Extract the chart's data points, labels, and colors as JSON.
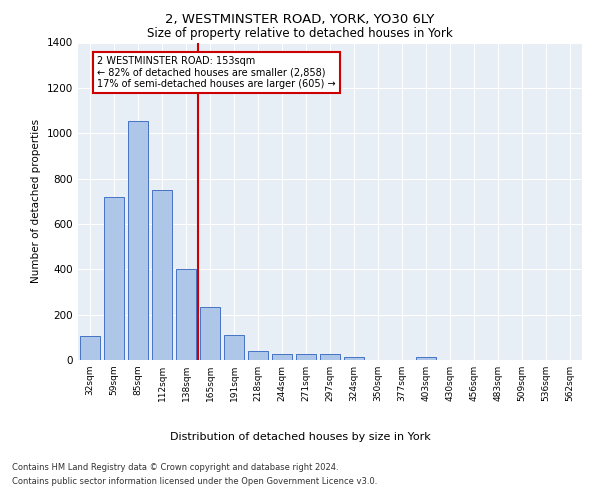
{
  "title1": "2, WESTMINSTER ROAD, YORK, YO30 6LY",
  "title2": "Size of property relative to detached houses in York",
  "xlabel": "Distribution of detached houses by size in York",
  "ylabel": "Number of detached properties",
  "categories": [
    "32sqm",
    "59sqm",
    "85sqm",
    "112sqm",
    "138sqm",
    "165sqm",
    "191sqm",
    "218sqm",
    "244sqm",
    "271sqm",
    "297sqm",
    "324sqm",
    "350sqm",
    "377sqm",
    "403sqm",
    "430sqm",
    "456sqm",
    "483sqm",
    "509sqm",
    "536sqm",
    "562sqm"
  ],
  "values": [
    105,
    720,
    1055,
    750,
    400,
    235,
    110,
    40,
    25,
    25,
    25,
    15,
    0,
    0,
    15,
    0,
    0,
    0,
    0,
    0,
    0
  ],
  "bar_color": "#aec6e8",
  "bar_edge_color": "#4472c4",
  "vline_x": 4.5,
  "vline_color": "#cc0000",
  "annotation_text": "2 WESTMINSTER ROAD: 153sqm\n← 82% of detached houses are smaller (2,858)\n17% of semi-detached houses are larger (605) →",
  "annotation_box_color": "#ffffff",
  "annotation_box_edge_color": "#cc0000",
  "ylim": [
    0,
    1400
  ],
  "yticks": [
    0,
    200,
    400,
    600,
    800,
    1000,
    1200,
    1400
  ],
  "footer1": "Contains HM Land Registry data © Crown copyright and database right 2024.",
  "footer2": "Contains public sector information licensed under the Open Government Licence v3.0.",
  "plot_bg_color": "#e8eef5"
}
